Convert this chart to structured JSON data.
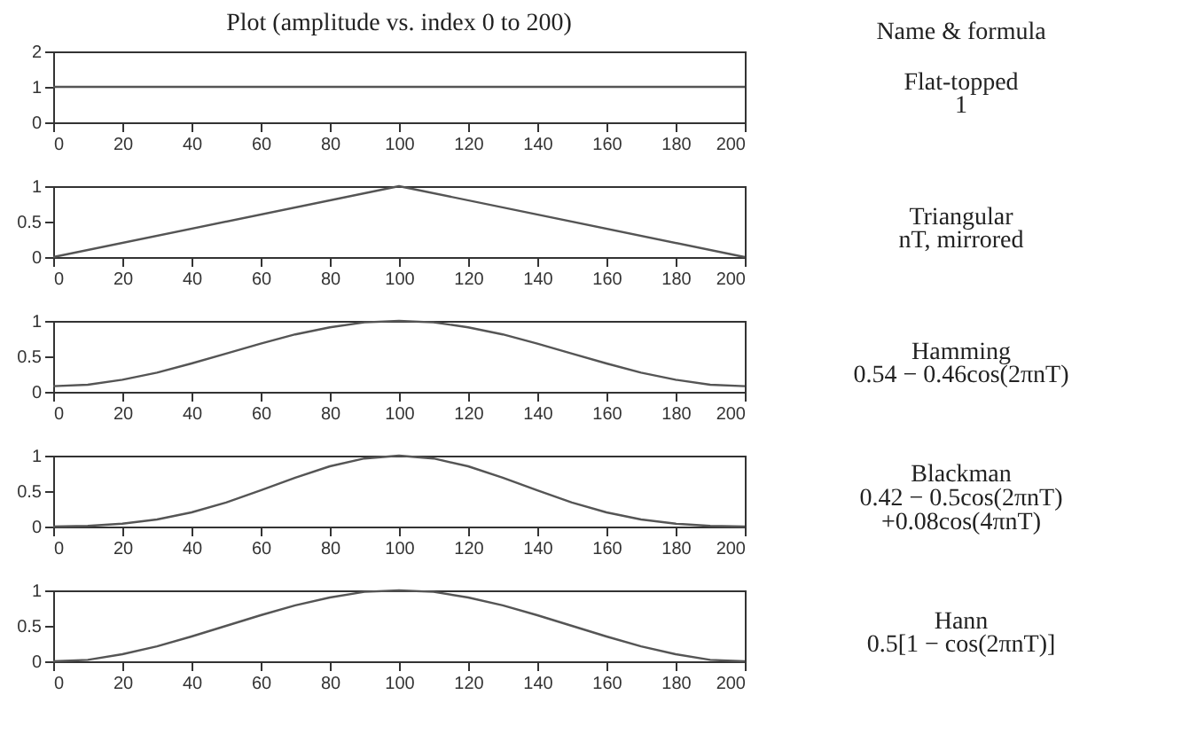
{
  "chart_data": [
    {
      "type": "line",
      "title": "Plot (amplitude vs. index 0 to 200)",
      "annotations": [
        "Name & formula",
        "Flat-topped",
        "1"
      ],
      "x": [
        0,
        200
      ],
      "series": [
        {
          "color": "#555555",
          "values": [
            1,
            1
          ]
        }
      ],
      "xlim": [
        0,
        200
      ],
      "xticks": [
        0,
        20,
        40,
        60,
        80,
        100,
        120,
        140,
        160,
        180,
        200
      ],
      "ylim": [
        0,
        2
      ],
      "yticks": [
        0,
        1,
        2
      ],
      "grid": false,
      "marker": "none",
      "line_style": "solid"
    },
    {
      "type": "line",
      "annotations": [
        "Triangular",
        "nT, mirrored"
      ],
      "x": [
        0,
        100,
        200
      ],
      "series": [
        {
          "color": "#555555",
          "values": [
            0,
            1,
            0
          ]
        }
      ],
      "xlim": [
        0,
        200
      ],
      "xticks": [
        0,
        20,
        40,
        60,
        80,
        100,
        120,
        140,
        160,
        180,
        200
      ],
      "ylim": [
        0,
        1
      ],
      "yticks": [
        0,
        0.5,
        1
      ],
      "grid": false,
      "marker": "none",
      "line_style": "solid"
    },
    {
      "type": "line",
      "annotations": [
        "Hamming",
        "0.54 − 0.46cos(2πnT)"
      ],
      "x": [
        0,
        10,
        20,
        30,
        40,
        50,
        60,
        70,
        80,
        90,
        100,
        110,
        120,
        130,
        140,
        150,
        160,
        170,
        180,
        190,
        200
      ],
      "series": [
        {
          "color": "#555555",
          "values": [
            0.08,
            0.1,
            0.17,
            0.27,
            0.4,
            0.54,
            0.68,
            0.81,
            0.91,
            0.98,
            1,
            0.98,
            0.91,
            0.81,
            0.68,
            0.54,
            0.4,
            0.27,
            0.17,
            0.1,
            0.08
          ]
        }
      ],
      "xlim": [
        0,
        200
      ],
      "xticks": [
        0,
        20,
        40,
        60,
        80,
        100,
        120,
        140,
        160,
        180,
        200
      ],
      "ylim": [
        0,
        1
      ],
      "yticks": [
        0,
        0.5,
        1
      ],
      "grid": false,
      "marker": "none",
      "line_style": "solid"
    },
    {
      "type": "line",
      "annotations": [
        "Blackman",
        "0.42 − 0.5cos(2πnT)",
        "+0.08cos(4πnT)"
      ],
      "x": [
        0,
        10,
        20,
        30,
        40,
        50,
        60,
        70,
        80,
        90,
        100,
        110,
        120,
        130,
        140,
        150,
        160,
        170,
        180,
        190,
        200
      ],
      "series": [
        {
          "color": "#555555",
          "values": [
            0,
            0.01,
            0.04,
            0.1,
            0.2,
            0.34,
            0.51,
            0.69,
            0.85,
            0.96,
            1,
            0.96,
            0.85,
            0.69,
            0.51,
            0.34,
            0.2,
            0.1,
            0.04,
            0.01,
            0
          ]
        }
      ],
      "xlim": [
        0,
        200
      ],
      "xticks": [
        0,
        20,
        40,
        60,
        80,
        100,
        120,
        140,
        160,
        180,
        200
      ],
      "ylim": [
        0,
        1
      ],
      "yticks": [
        0,
        0.5,
        1
      ],
      "grid": false,
      "marker": "none",
      "line_style": "solid"
    },
    {
      "type": "line",
      "annotations": [
        "Hann",
        "0.5[1 − cos(2πnT)]"
      ],
      "x": [
        0,
        10,
        20,
        30,
        40,
        50,
        60,
        70,
        80,
        90,
        100,
        110,
        120,
        130,
        140,
        150,
        160,
        170,
        180,
        190,
        200
      ],
      "series": [
        {
          "color": "#555555",
          "values": [
            0,
            0.02,
            0.1,
            0.21,
            0.35,
            0.5,
            0.65,
            0.79,
            0.9,
            0.98,
            1,
            0.98,
            0.9,
            0.79,
            0.65,
            0.5,
            0.35,
            0.21,
            0.1,
            0.02,
            0
          ]
        }
      ],
      "xlim": [
        0,
        200
      ],
      "xticks": [
        0,
        20,
        40,
        60,
        80,
        100,
        120,
        140,
        160,
        180,
        200
      ],
      "ylim": [
        0,
        1
      ],
      "yticks": [
        0,
        0.5,
        1
      ],
      "grid": false,
      "marker": "none",
      "line_style": "solid"
    }
  ]
}
